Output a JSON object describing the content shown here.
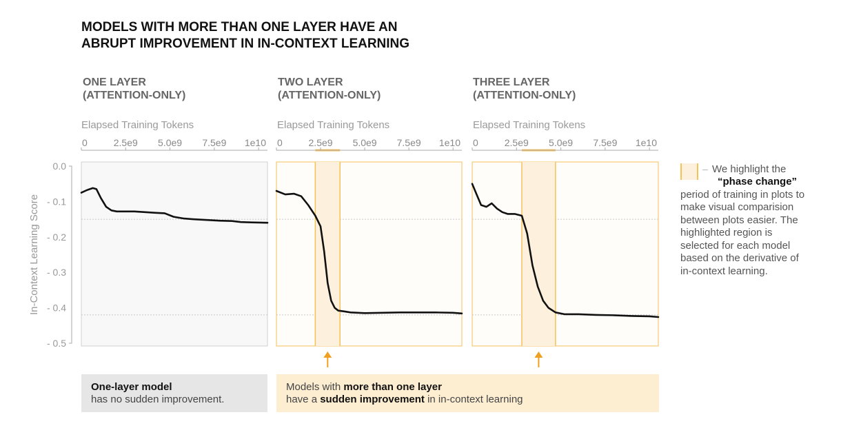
{
  "title": {
    "line1": "MODELS WITH MORE THAN ONE LAYER HAVE AN",
    "line2": "ABRUPT IMPROVEMENT IN IN-CONTEXT LEARNING"
  },
  "y_axis_label": "In-Context Learning Score",
  "y_ticks": [
    "0.0",
    "- 0.1",
    "- 0.2",
    "- 0.3",
    "- 0.4",
    "- 0.5"
  ],
  "x_ticks": [
    "0",
    "2.5e9",
    "5.0e9",
    "7.5e9",
    "1e10"
  ],
  "note": {
    "line1": "We highlight the",
    "line2_bold": "“phase change”",
    "line3": "period of training in plots to",
    "line4": "make visual comparision",
    "line5": "between plots easier. The",
    "line6": "highlighted region is",
    "line7": "selected for each model",
    "line8": "based on the derivative of",
    "line9": "in-context learning."
  },
  "captions": {
    "one_layer_bold": "One-layer model",
    "one_layer_rest": "has no sudden improvement.",
    "multi_pre": "Models with ",
    "multi_bold1": "more than one layer",
    "multi_line2_pre": "have a ",
    "multi_bold2": "sudden improvement",
    "multi_line2_post": " in in-context learning"
  },
  "colors": {
    "highlight_fill": "#fdf1de",
    "highlight_border": "#f6c05a",
    "arrow": "#f0a020",
    "line": "#111111",
    "panel_bg": "#f8f8f8"
  },
  "chart_data": [
    {
      "type": "line",
      "panel_title": [
        "ONE LAYER",
        "(ATTENTION-ONLY)"
      ],
      "xlabel": "Elapsed Training Tokens",
      "ylabel": "In-Context Learning Score",
      "xlim": [
        0,
        10500000000
      ],
      "ylim": [
        -0.5,
        0.0
      ],
      "reference_lines": [
        -0.15,
        -0.42
      ],
      "highlight": null,
      "series": [
        {
          "x": [
            0,
            300000000,
            650000000,
            850000000,
            1100000000,
            1400000000,
            1700000000,
            2000000000,
            2400000000,
            3000000000,
            3600000000,
            4200000000,
            4700000000,
            5200000000,
            5800000000,
            6300000000,
            7000000000,
            7800000000,
            8500000000,
            9000000000,
            9600000000,
            10500000000
          ],
          "values": [
            -0.075,
            -0.068,
            -0.062,
            -0.065,
            -0.09,
            -0.115,
            -0.125,
            -0.128,
            -0.128,
            -0.128,
            -0.13,
            -0.132,
            -0.133,
            -0.143,
            -0.148,
            -0.15,
            -0.152,
            -0.154,
            -0.155,
            -0.158,
            -0.159,
            -0.16
          ]
        }
      ]
    },
    {
      "type": "line",
      "panel_title": [
        "TWO LAYER",
        "(ATTENTION-ONLY)"
      ],
      "xlabel": "Elapsed Training Tokens",
      "ylabel": "In-Context Learning Score",
      "xlim": [
        0,
        10500000000
      ],
      "ylim": [
        -0.5,
        0.0
      ],
      "reference_lines": [
        -0.15,
        -0.42
      ],
      "highlight": [
        2200000000,
        3600000000
      ],
      "series": [
        {
          "x": [
            0,
            500000000,
            1000000000,
            1400000000,
            1800000000,
            2200000000,
            2500000000,
            2700000000,
            2900000000,
            3100000000,
            3300000000,
            3500000000,
            3800000000,
            4200000000,
            5000000000,
            6000000000,
            7000000000,
            8000000000,
            9000000000,
            10000000000,
            10500000000
          ],
          "values": [
            -0.07,
            -0.08,
            -0.078,
            -0.085,
            -0.11,
            -0.14,
            -0.17,
            -0.24,
            -0.33,
            -0.38,
            -0.4,
            -0.408,
            -0.41,
            -0.413,
            -0.415,
            -0.414,
            -0.413,
            -0.413,
            -0.413,
            -0.414,
            -0.416
          ]
        }
      ]
    },
    {
      "type": "line",
      "panel_title": [
        "THREE LAYER",
        "(ATTENTION-ONLY)"
      ],
      "xlabel": "Elapsed Training Tokens",
      "ylabel": "In-Context Learning Score",
      "xlim": [
        0,
        10500000000
      ],
      "ylim": [
        -0.5,
        0.0
      ],
      "reference_lines": [
        -0.15,
        -0.42
      ],
      "highlight": [
        2800000000,
        4700000000
      ],
      "series": [
        {
          "x": [
            0,
            250000000,
            500000000,
            800000000,
            1100000000,
            1400000000,
            1700000000,
            2000000000,
            2400000000,
            2800000000,
            3100000000,
            3400000000,
            3700000000,
            4000000000,
            4300000000,
            4700000000,
            5200000000,
            6000000000,
            7000000000,
            8000000000,
            9000000000,
            10000000000,
            10500000000
          ],
          "values": [
            -0.05,
            -0.08,
            -0.11,
            -0.115,
            -0.105,
            -0.12,
            -0.13,
            -0.135,
            -0.135,
            -0.14,
            -0.19,
            -0.28,
            -0.34,
            -0.38,
            -0.4,
            -0.413,
            -0.418,
            -0.418,
            -0.42,
            -0.421,
            -0.423,
            -0.424,
            -0.426
          ]
        }
      ]
    }
  ]
}
